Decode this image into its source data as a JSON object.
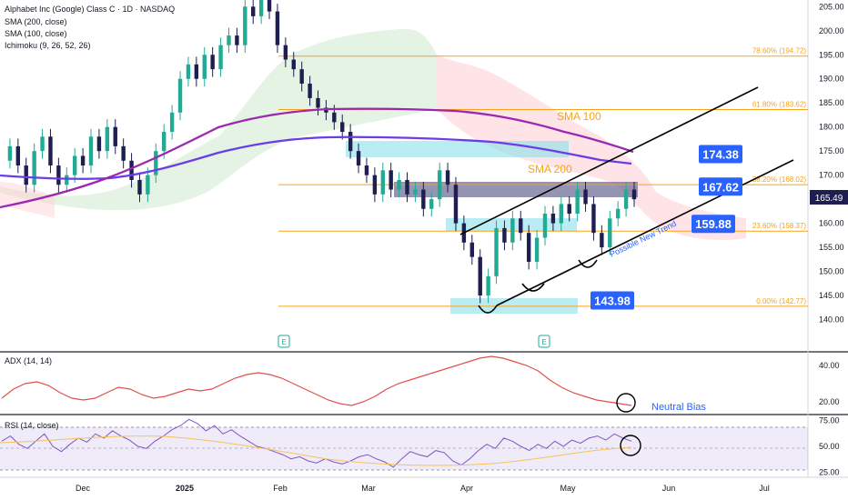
{
  "header": {
    "title": "Alphabet Inc (Google) Class C · 1D · NASDAQ",
    "indicators": [
      "SMA (200, close)",
      "SMA (100, close)",
      "Ichimoku (9, 26, 52, 26)"
    ]
  },
  "colors": {
    "up": "#22ab94",
    "down": "#1e1e50",
    "sma100": "#9c27b0",
    "sma200": "#6a3de8",
    "fib": "#f7a21b",
    "accent": "#2962ff",
    "adx": "#e0504d",
    "rsi": "#7e57c2",
    "cloud_up": "#a5d6a7",
    "cloud_down": "#ef9a9a",
    "zone": "#80deea"
  },
  "chart_data": [
    {
      "type": "candlestick",
      "title": "Alphabet Inc (Google) Class C · 1D · NASDAQ",
      "ylim": [
        135,
        206
      ],
      "y_ticks": [
        140,
        145,
        150,
        155,
        160,
        165,
        170,
        175,
        180,
        185,
        190,
        195,
        200,
        205
      ],
      "y_tick_labels": [
        "140.00",
        "145.00",
        "150.00",
        "155.00",
        "160.00",
        "165.00",
        "170.00",
        "175.00",
        "180.00",
        "185.00",
        "190.00",
        "195.00",
        "200.00",
        "205.00"
      ],
      "x_labels": [
        "Dec",
        "2025",
        "Feb",
        "Mar",
        "Apr",
        "May",
        "Jun",
        "Jul"
      ],
      "close_path": [
        173,
        176,
        172,
        168,
        175,
        178,
        172,
        168,
        170,
        174,
        172,
        178,
        175,
        180,
        176,
        173,
        169,
        166,
        170,
        175,
        179,
        183,
        190,
        193,
        190,
        195,
        192,
        197,
        199,
        197,
        205,
        203,
        207,
        204,
        197,
        194,
        192,
        189,
        186,
        184,
        183,
        181,
        179,
        175,
        172,
        170,
        166,
        171,
        167,
        169,
        166,
        167,
        163,
        165,
        171,
        168,
        160,
        156,
        153,
        145,
        149,
        159,
        156,
        161,
        158,
        152,
        157,
        162,
        160,
        164,
        162,
        167,
        164,
        158,
        155,
        161,
        163,
        167,
        165
      ],
      "current_price": "165.49",
      "price_labels": [
        {
          "value": 174.38,
          "text": "174.38"
        },
        {
          "value": 167.62,
          "text": "167.62"
        },
        {
          "value": 159.88,
          "text": "159.88"
        },
        {
          "value": 143.98,
          "text": "143.98"
        }
      ],
      "fib_levels": [
        {
          "value": 194.72,
          "text": "78.60% (194.72)"
        },
        {
          "value": 183.62,
          "text": "61.80% (183.62)"
        },
        {
          "value": 168.02,
          "text": "38.20% (168.02)"
        },
        {
          "value": 158.37,
          "text": "23.60% (158.37)"
        },
        {
          "value": 142.77,
          "text": "0.00% (142.77)"
        }
      ],
      "annotations": [
        "SMA 100",
        "SMA 200",
        "Possible New Trend"
      ],
      "earnings_marker": "E"
    },
    {
      "type": "line",
      "title": "ADX (14, 14)",
      "ylim": [
        15,
        45
      ],
      "y_ticks": [
        20,
        40
      ],
      "y_tick_labels": [
        "20.00",
        "40.00"
      ],
      "series": [
        {
          "name": "ADX",
          "values": [
            22,
            27,
            30,
            31,
            29,
            25,
            22,
            21,
            22,
            25,
            28,
            27,
            24,
            22,
            23,
            25,
            27,
            26,
            27,
            30,
            33,
            35,
            36,
            35,
            33,
            30,
            27,
            24,
            21,
            19,
            18,
            20,
            23,
            27,
            30,
            32,
            34,
            36,
            38,
            40,
            42,
            44,
            45,
            44,
            42,
            40,
            37,
            32,
            28,
            25,
            23,
            21,
            20,
            19,
            18
          ]
        }
      ],
      "annotations": [
        "Neutral Bias"
      ]
    },
    {
      "type": "line",
      "title": "RSI (14, close)",
      "ylim": [
        22,
        78
      ],
      "y_ticks": [
        25,
        50,
        75
      ],
      "y_tick_labels": [
        "25.00",
        "50.00",
        "75.00"
      ],
      "series": [
        {
          "name": "RSI",
          "values": [
            55,
            60,
            52,
            48,
            55,
            62,
            50,
            45,
            52,
            58,
            54,
            62,
            58,
            65,
            60,
            56,
            50,
            48,
            55,
            60,
            66,
            70,
            76,
            72,
            65,
            70,
            62,
            66,
            60,
            55,
            50,
            48,
            45,
            42,
            38,
            40,
            36,
            34,
            38,
            35,
            33,
            36,
            40,
            42,
            38,
            35,
            30,
            38,
            45,
            42,
            40,
            46,
            44,
            36,
            32,
            38,
            46,
            52,
            48,
            58,
            55,
            50,
            46,
            52,
            48,
            55,
            50,
            56,
            53,
            58,
            60,
            56,
            62,
            58,
            55
          ]
        }
      ]
    }
  ]
}
